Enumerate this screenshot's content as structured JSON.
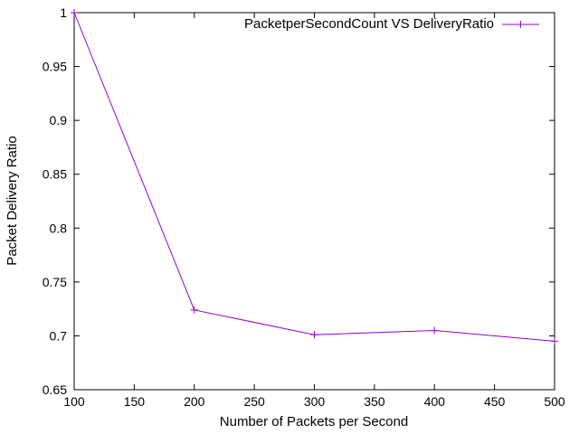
{
  "chart_data": {
    "type": "line",
    "xlabel": "Number of Packets per Second",
    "ylabel": "Packet Delivery Ratio",
    "xlim": [
      100,
      500
    ],
    "ylim": [
      0.65,
      1
    ],
    "xticks": [
      "100",
      "150",
      "200",
      "250",
      "300",
      "350",
      "400",
      "450",
      "500"
    ],
    "yticks": [
      "0.65",
      "0.7",
      "0.75",
      "0.8",
      "0.85",
      "0.9",
      "0.95",
      "1"
    ],
    "grid": false,
    "legend_position": "top-right",
    "series": [
      {
        "name": "PacketperSecondCount VS DeliveryRatio",
        "color": "#9400d3",
        "marker": "plus",
        "x": [
          100,
          200,
          300,
          400,
          500
        ],
        "y": [
          1.0,
          0.724,
          0.701,
          0.705,
          0.695
        ]
      }
    ]
  }
}
